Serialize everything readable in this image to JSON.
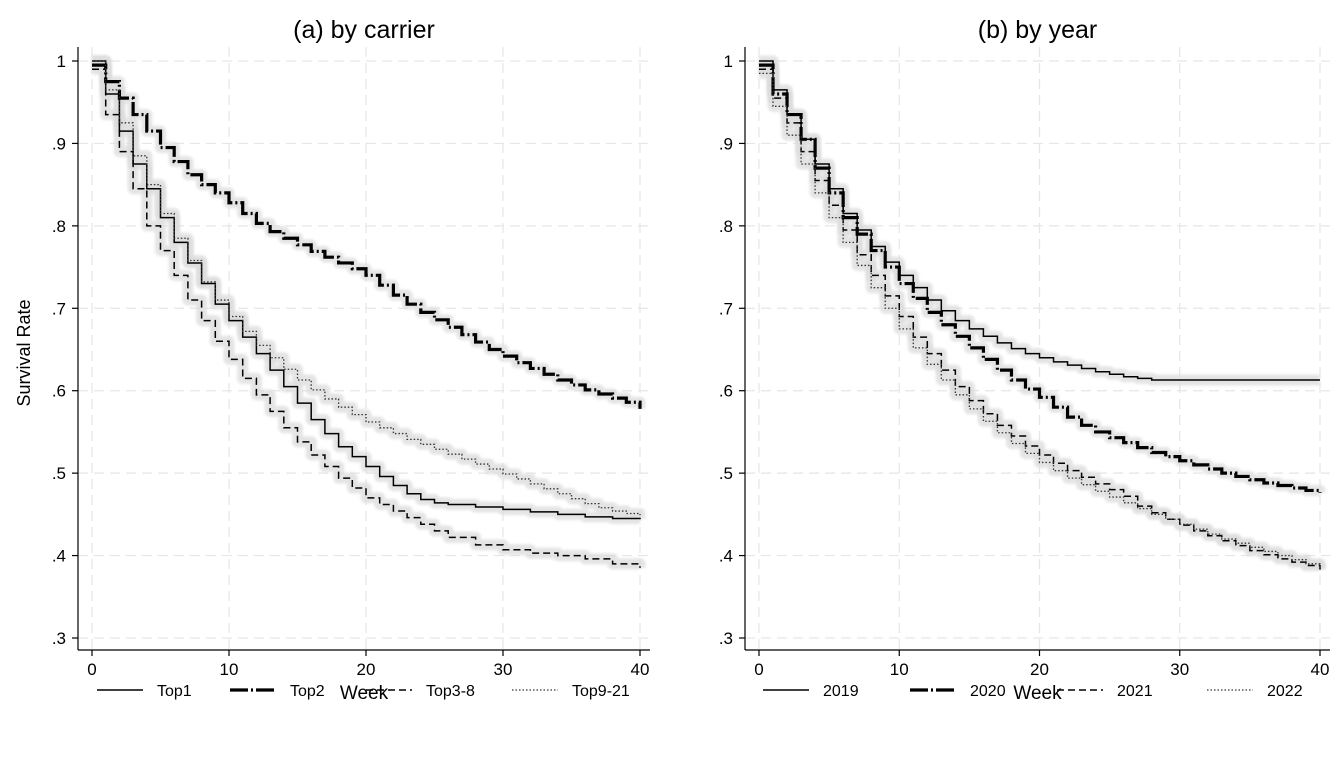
{
  "figure": {
    "ylabel": "Survival Rate"
  },
  "chart_data": [
    {
      "type": "line",
      "title": "(a) by carrier",
      "xlabel": "Week",
      "ylabel": "Survival Rate",
      "xlim": [
        0,
        40
      ],
      "ylim": [
        0.3,
        1.0
      ],
      "xticks": [
        0,
        10,
        20,
        30,
        40
      ],
      "xtick_labels": [
        "0",
        "10",
        "20",
        "30",
        "40"
      ],
      "yticks": [
        0.3,
        0.4,
        0.5,
        0.6,
        0.7,
        0.8,
        0.9,
        1.0
      ],
      "ytick_labels": [
        ".3",
        ".4",
        ".5",
        ".6",
        ".7",
        ".8",
        ".9",
        "1"
      ],
      "grid": true,
      "legend_position": "bottom",
      "step": true,
      "confidence_band": true,
      "series": [
        {
          "name": "Top1",
          "style": "solid",
          "x": [
            0,
            1,
            2,
            3,
            4,
            5,
            6,
            7,
            8,
            9,
            10,
            11,
            12,
            13,
            14,
            15,
            16,
            17,
            18,
            19,
            20,
            21,
            22,
            23,
            24,
            25,
            26,
            28,
            30,
            32,
            34,
            36,
            38,
            40
          ],
          "y": [
            1.0,
            0.96,
            0.915,
            0.875,
            0.845,
            0.81,
            0.78,
            0.755,
            0.73,
            0.705,
            0.685,
            0.665,
            0.645,
            0.625,
            0.605,
            0.585,
            0.565,
            0.548,
            0.532,
            0.52,
            0.508,
            0.496,
            0.485,
            0.475,
            0.468,
            0.464,
            0.462,
            0.459,
            0.456,
            0.453,
            0.45,
            0.447,
            0.445,
            0.444
          ]
        },
        {
          "name": "Top2",
          "style": "thick-dashdot",
          "x": [
            0,
            1,
            2,
            3,
            4,
            5,
            6,
            7,
            8,
            9,
            10,
            11,
            12,
            13,
            14,
            15,
            16,
            17,
            18,
            19,
            20,
            21,
            22,
            23,
            24,
            25,
            26,
            27,
            28,
            29,
            30,
            31,
            32,
            33,
            34,
            35,
            36,
            37,
            38,
            39,
            40
          ],
          "y": [
            0.995,
            0.975,
            0.955,
            0.935,
            0.915,
            0.895,
            0.878,
            0.862,
            0.85,
            0.84,
            0.828,
            0.815,
            0.803,
            0.793,
            0.785,
            0.777,
            0.769,
            0.762,
            0.755,
            0.748,
            0.74,
            0.728,
            0.716,
            0.705,
            0.695,
            0.686,
            0.677,
            0.668,
            0.659,
            0.65,
            0.642,
            0.634,
            0.627,
            0.62,
            0.613,
            0.607,
            0.601,
            0.596,
            0.591,
            0.586,
            0.578
          ]
        },
        {
          "name": "Top3-8",
          "style": "dashed",
          "x": [
            0,
            1,
            2,
            3,
            4,
            5,
            6,
            7,
            8,
            9,
            10,
            11,
            12,
            13,
            14,
            15,
            16,
            17,
            18,
            19,
            20,
            21,
            22,
            23,
            24,
            25,
            26,
            28,
            30,
            32,
            34,
            36,
            38,
            40
          ],
          "y": [
            0.99,
            0.935,
            0.89,
            0.845,
            0.8,
            0.77,
            0.74,
            0.71,
            0.685,
            0.66,
            0.638,
            0.615,
            0.595,
            0.575,
            0.555,
            0.538,
            0.522,
            0.508,
            0.494,
            0.482,
            0.47,
            0.462,
            0.454,
            0.446,
            0.438,
            0.43,
            0.422,
            0.413,
            0.407,
            0.403,
            0.4,
            0.396,
            0.39,
            0.385
          ]
        },
        {
          "name": "Top9-21",
          "style": "dotted",
          "x": [
            0,
            1,
            2,
            3,
            4,
            5,
            6,
            7,
            8,
            9,
            10,
            11,
            12,
            13,
            14,
            15,
            16,
            17,
            18,
            19,
            20,
            21,
            22,
            23,
            24,
            25,
            26,
            27,
            28,
            29,
            30,
            31,
            32,
            33,
            34,
            35,
            36,
            37,
            38,
            39,
            40
          ],
          "y": [
            1.0,
            0.965,
            0.925,
            0.885,
            0.85,
            0.815,
            0.785,
            0.758,
            0.732,
            0.71,
            0.69,
            0.672,
            0.655,
            0.64,
            0.626,
            0.613,
            0.601,
            0.59,
            0.58,
            0.571,
            0.562,
            0.555,
            0.548,
            0.541,
            0.535,
            0.529,
            0.523,
            0.517,
            0.511,
            0.505,
            0.499,
            0.493,
            0.487,
            0.481,
            0.475,
            0.469,
            0.463,
            0.458,
            0.454,
            0.451,
            0.449
          ]
        }
      ]
    },
    {
      "type": "line",
      "title": "(b) by year",
      "xlabel": "Week",
      "ylabel": "",
      "xlim": [
        0,
        40
      ],
      "ylim": [
        0.3,
        1.0
      ],
      "xticks": [
        0,
        10,
        20,
        30,
        40
      ],
      "xtick_labels": [
        "0",
        "10",
        "20",
        "30",
        "40"
      ],
      "yticks": [
        0.3,
        0.4,
        0.5,
        0.6,
        0.7,
        0.8,
        0.9,
        1.0
      ],
      "ytick_labels": [
        ".3",
        ".4",
        ".5",
        ".6",
        ".7",
        ".8",
        ".9",
        "1"
      ],
      "grid": true,
      "legend_position": "bottom",
      "step": true,
      "confidence_band": true,
      "series": [
        {
          "name": "2019",
          "style": "solid",
          "x": [
            0,
            1,
            2,
            3,
            4,
            5,
            6,
            7,
            8,
            9,
            10,
            11,
            12,
            13,
            14,
            15,
            16,
            17,
            18,
            19,
            20,
            21,
            22,
            23,
            24,
            25,
            26,
            27,
            28,
            30,
            32,
            34,
            36,
            38,
            40
          ],
          "y": [
            1.0,
            0.965,
            0.935,
            0.905,
            0.875,
            0.845,
            0.815,
            0.795,
            0.775,
            0.756,
            0.74,
            0.725,
            0.71,
            0.697,
            0.685,
            0.675,
            0.666,
            0.658,
            0.651,
            0.645,
            0.64,
            0.635,
            0.631,
            0.627,
            0.623,
            0.62,
            0.617,
            0.615,
            0.613,
            0.613,
            0.613,
            0.613,
            0.613,
            0.613,
            0.613
          ]
        },
        {
          "name": "2020",
          "style": "thick-dashdot",
          "x": [
            0,
            1,
            2,
            3,
            4,
            5,
            6,
            7,
            8,
            9,
            10,
            11,
            12,
            13,
            14,
            15,
            16,
            17,
            18,
            19,
            20,
            21,
            22,
            23,
            24,
            25,
            26,
            27,
            28,
            29,
            30,
            31,
            32,
            33,
            34,
            35,
            36,
            37,
            38,
            39,
            40
          ],
          "y": [
            0.995,
            0.96,
            0.935,
            0.905,
            0.87,
            0.84,
            0.81,
            0.79,
            0.77,
            0.75,
            0.73,
            0.712,
            0.695,
            0.68,
            0.666,
            0.652,
            0.638,
            0.625,
            0.613,
            0.602,
            0.592,
            0.58,
            0.568,
            0.558,
            0.55,
            0.543,
            0.537,
            0.531,
            0.525,
            0.52,
            0.515,
            0.51,
            0.505,
            0.5,
            0.496,
            0.492,
            0.488,
            0.485,
            0.482,
            0.479,
            0.476
          ]
        },
        {
          "name": "2021",
          "style": "dashed",
          "x": [
            0,
            1,
            2,
            3,
            4,
            5,
            6,
            7,
            8,
            9,
            10,
            11,
            12,
            13,
            14,
            15,
            16,
            17,
            18,
            19,
            20,
            21,
            22,
            23,
            24,
            25,
            26,
            27,
            28,
            29,
            30,
            31,
            32,
            33,
            34,
            35,
            36,
            37,
            38,
            39,
            40
          ],
          "y": [
            0.99,
            0.955,
            0.925,
            0.89,
            0.855,
            0.825,
            0.795,
            0.765,
            0.74,
            0.715,
            0.69,
            0.665,
            0.645,
            0.625,
            0.605,
            0.588,
            0.572,
            0.558,
            0.545,
            0.533,
            0.522,
            0.512,
            0.503,
            0.495,
            0.487,
            0.48,
            0.472,
            0.46,
            0.452,
            0.444,
            0.437,
            0.43,
            0.424,
            0.418,
            0.412,
            0.406,
            0.401,
            0.396,
            0.392,
            0.388,
            0.383
          ]
        },
        {
          "name": "2022",
          "style": "dotted",
          "x": [
            0,
            1,
            2,
            3,
            4,
            5,
            6,
            7,
            8,
            9,
            10,
            11,
            12,
            13,
            14,
            15,
            16,
            17,
            18,
            19,
            20,
            21,
            22,
            23,
            24,
            25,
            26,
            27,
            28,
            29,
            30,
            31,
            32,
            33,
            34,
            35,
            36,
            37,
            38,
            39,
            40
          ],
          "y": [
            0.985,
            0.945,
            0.91,
            0.875,
            0.84,
            0.81,
            0.78,
            0.752,
            0.725,
            0.7,
            0.675,
            0.652,
            0.632,
            0.613,
            0.595,
            0.578,
            0.563,
            0.549,
            0.536,
            0.524,
            0.513,
            0.503,
            0.494,
            0.486,
            0.478,
            0.471,
            0.464,
            0.457,
            0.45,
            0.444,
            0.438,
            0.432,
            0.426,
            0.42,
            0.415,
            0.41,
            0.405,
            0.4,
            0.395,
            0.39,
            0.384
          ]
        }
      ]
    }
  ]
}
